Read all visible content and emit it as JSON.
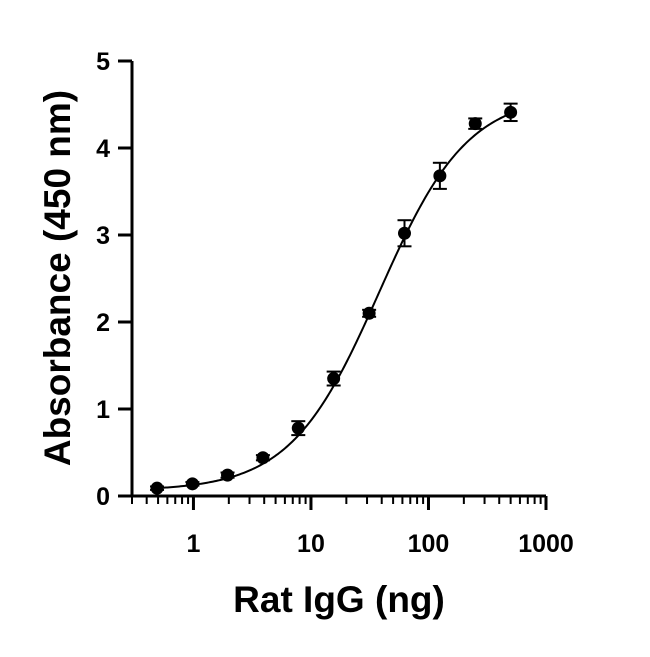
{
  "chart_data": {
    "type": "scatter",
    "title": "",
    "xlabel": "Rat IgG (ng)",
    "ylabel": "Absorbance (450 nm)",
    "x_scale": "log10",
    "xlim": [
      0.3,
      1000
    ],
    "ylim": [
      0,
      5
    ],
    "x_ticks": [
      1,
      10,
      100,
      1000
    ],
    "x_tick_labels": [
      "1",
      "10",
      "100",
      "1000"
    ],
    "y_ticks": [
      0,
      1,
      2,
      3,
      4,
      5
    ],
    "y_tick_labels": [
      "0",
      "1",
      "2",
      "3",
      "4",
      "5"
    ],
    "grid": false,
    "legend": "none",
    "colors": {
      "marker": "#000000",
      "line": "#000000",
      "axis": "#000000"
    },
    "series": [
      {
        "x": [
          0.49,
          0.98,
          1.95,
          3.9,
          7.8,
          15.6,
          31.25,
          62.5,
          125,
          250,
          500
        ],
        "y": [
          0.09,
          0.14,
          0.24,
          0.44,
          0.78,
          1.35,
          2.1,
          3.02,
          3.68,
          4.28,
          4.41
        ],
        "error": [
          0.02,
          0.02,
          0.03,
          0.03,
          0.08,
          0.08,
          0.04,
          0.15,
          0.15,
          0.06,
          0.1
        ]
      }
    ],
    "fit_curve": {
      "type": "4PL",
      "bottom": 0.06,
      "top": 4.62,
      "ec50": 38,
      "hill": 1.15
    }
  }
}
